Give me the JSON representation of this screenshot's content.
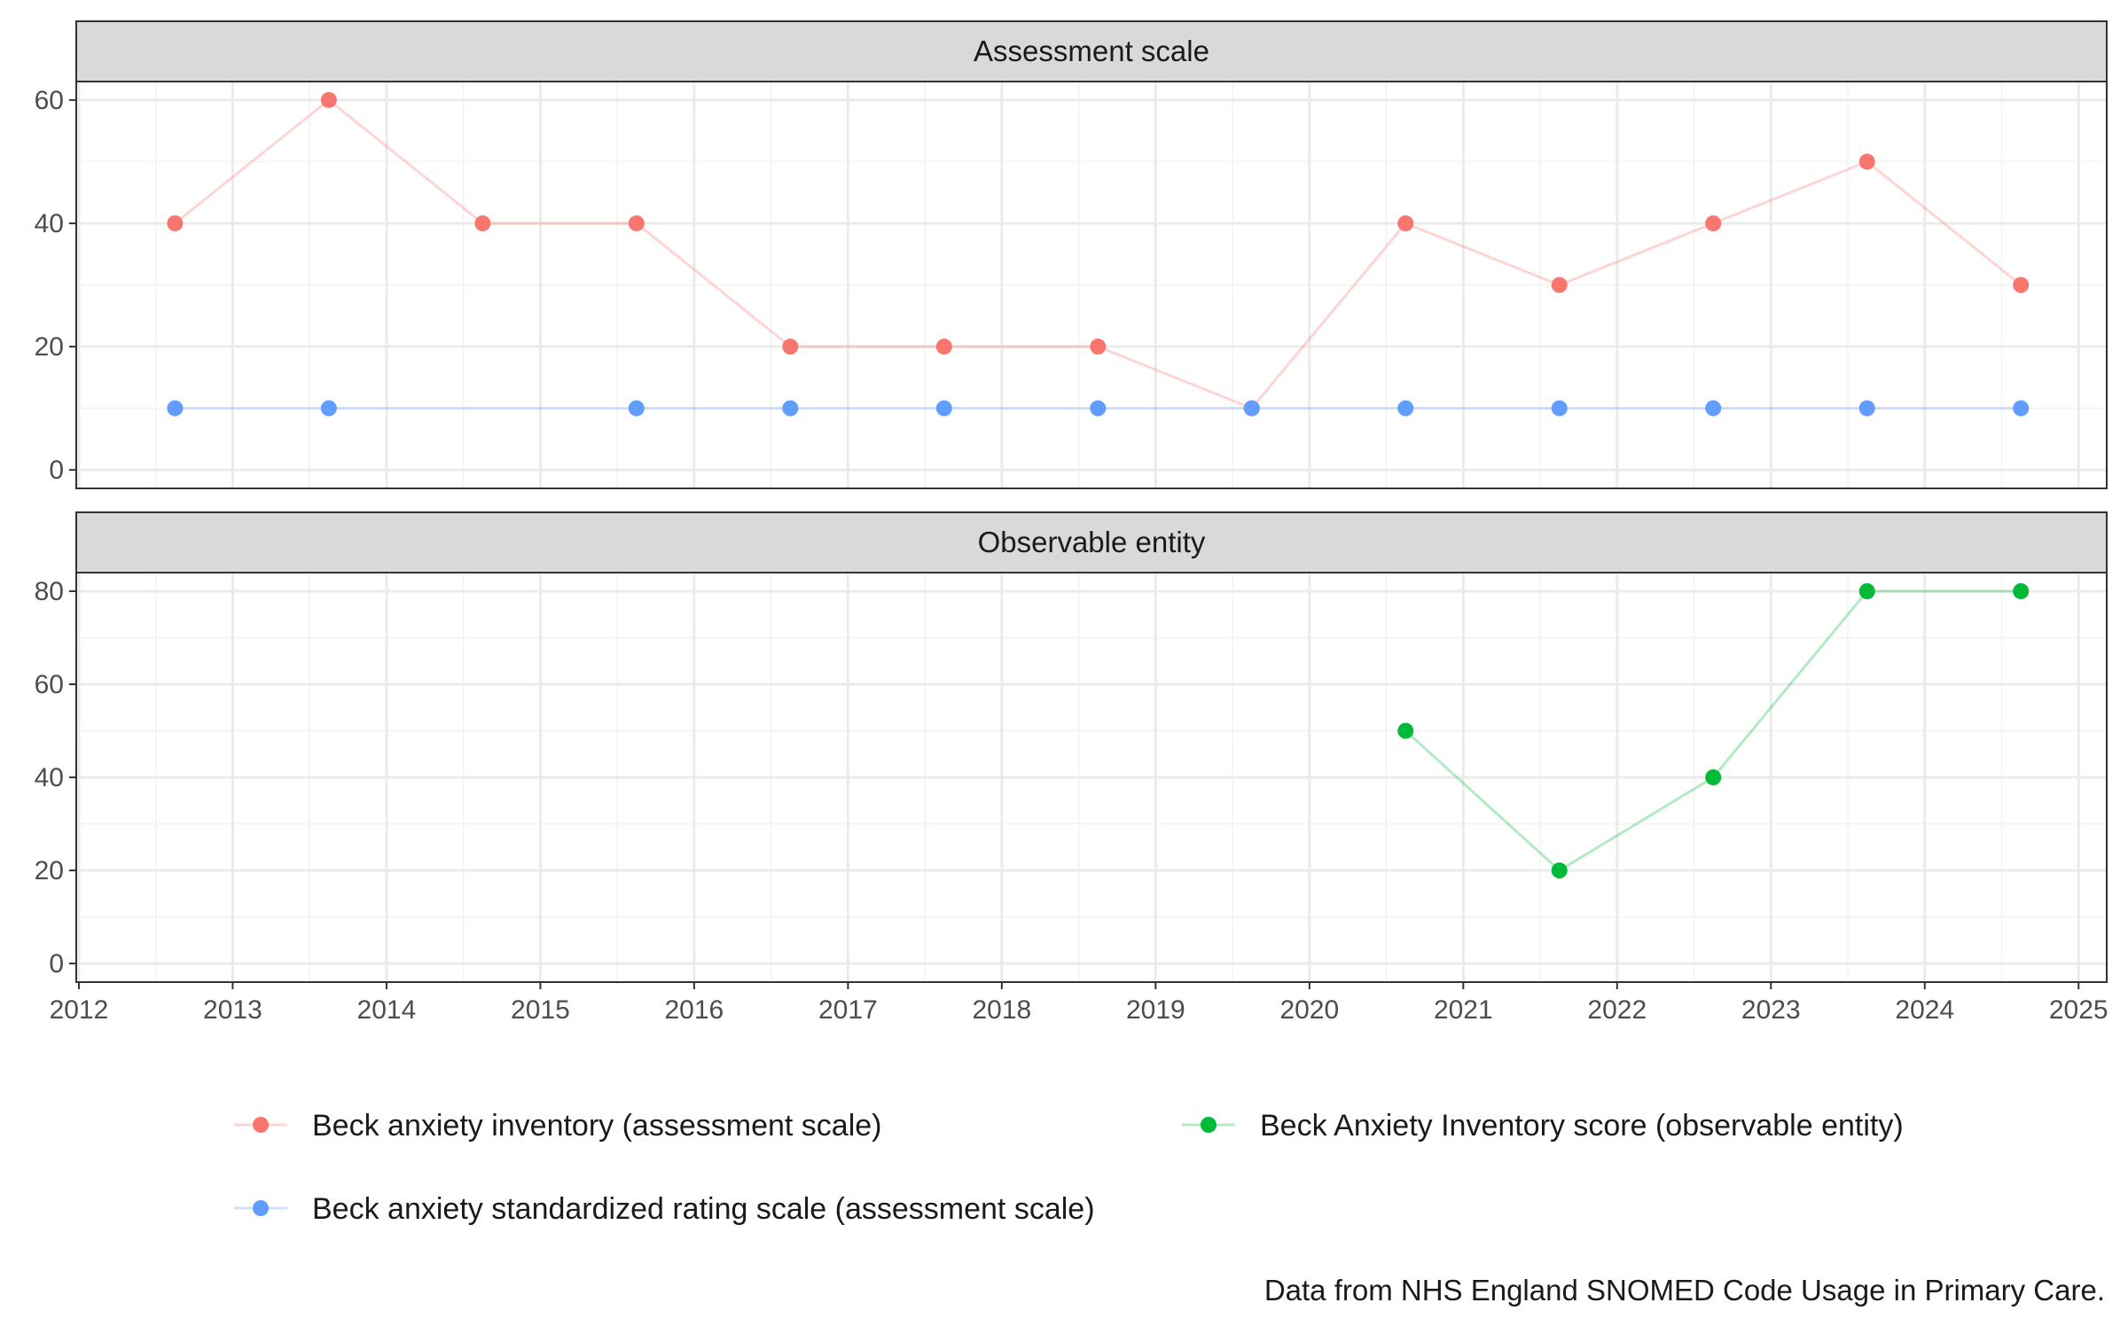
{
  "chart_data": {
    "type": "line",
    "x_axis": {
      "ticks": [
        2012,
        2013,
        2014,
        2015,
        2016,
        2017,
        2018,
        2019,
        2020,
        2021,
        2022,
        2023,
        2024,
        2025
      ],
      "range": [
        2012,
        2025
      ],
      "grid": true
    },
    "panels": [
      {
        "strip": "Assessment scale",
        "ylim": [
          -3,
          63
        ],
        "yticks": [
          0,
          20,
          40,
          60
        ],
        "series": [
          {
            "name": "Beck anxiety inventory (assessment scale)",
            "color": "#F8766D",
            "points": [
              {
                "x": "2012-08",
                "y": 40
              },
              {
                "x": "2013-08",
                "y": 60
              },
              {
                "x": "2014-08",
                "y": 40
              },
              {
                "x": "2015-08",
                "y": 40
              },
              {
                "x": "2016-08",
                "y": 20
              },
              {
                "x": "2017-08",
                "y": 20
              },
              {
                "x": "2018-08",
                "y": 20
              },
              {
                "x": "2019-08",
                "y": 10
              },
              {
                "x": "2020-08",
                "y": 40
              },
              {
                "x": "2021-08",
                "y": 30
              },
              {
                "x": "2022-08",
                "y": 40
              },
              {
                "x": "2023-08",
                "y": 50
              },
              {
                "x": "2024-08",
                "y": 30
              }
            ]
          },
          {
            "name": "Beck anxiety standardized rating scale (assessment scale)",
            "color": "#619CFF",
            "points": [
              {
                "x": "2012-08",
                "y": 10
              },
              {
                "x": "2013-08",
                "y": 10
              },
              {
                "x": "2015-08",
                "y": 10
              },
              {
                "x": "2016-08",
                "y": 10
              },
              {
                "x": "2017-08",
                "y": 10
              },
              {
                "x": "2018-08",
                "y": 10
              },
              {
                "x": "2019-08",
                "y": 10
              },
              {
                "x": "2020-08",
                "y": 10
              },
              {
                "x": "2021-08",
                "y": 10
              },
              {
                "x": "2022-08",
                "y": 10
              },
              {
                "x": "2023-08",
                "y": 10
              },
              {
                "x": "2024-08",
                "y": 10
              }
            ]
          }
        ]
      },
      {
        "strip": "Observable entity",
        "ylim": [
          -4,
          84
        ],
        "yticks": [
          0,
          20,
          40,
          60,
          80
        ],
        "series": [
          {
            "name": "Beck Anxiety Inventory score (observable entity)",
            "color": "#00BA38",
            "points": [
              {
                "x": "2020-08",
                "y": 50
              },
              {
                "x": "2021-08",
                "y": 20
              },
              {
                "x": "2022-08",
                "y": 40
              },
              {
                "x": "2023-08",
                "y": 80
              },
              {
                "x": "2024-08",
                "y": 80
              }
            ]
          }
        ]
      }
    ],
    "legend": {
      "position": "bottom",
      "entries": [
        {
          "label": "Beck anxiety inventory (assessment scale)",
          "color": "#F8766D"
        },
        {
          "label": "Beck Anxiety Inventory score (observable entity)",
          "color": "#00BA38"
        },
        {
          "label": "Beck anxiety standardized rating scale (assessment scale)",
          "color": "#619CFF"
        }
      ]
    },
    "caption": "Data from NHS England SNOMED Code Usage in Primary Care."
  }
}
